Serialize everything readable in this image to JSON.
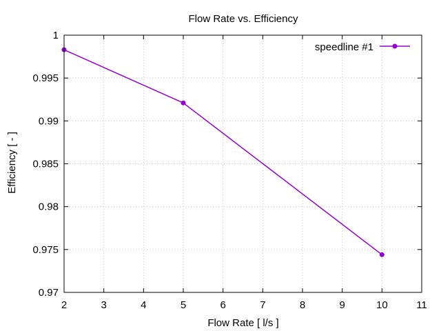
{
  "chart_data": {
    "type": "line",
    "title": "Flow Rate vs. Efficiency",
    "xlabel": "Flow Rate [ l/s ]",
    "ylabel": "Efficiency [ - ]",
    "xlim": [
      2,
      11
    ],
    "ylim": [
      0.97,
      1.0
    ],
    "xticks": [
      2,
      3,
      4,
      5,
      6,
      7,
      8,
      9,
      10,
      11
    ],
    "xtick_labels": [
      "2",
      "3",
      "4",
      "5",
      "6",
      "7",
      "8",
      "9",
      "10",
      "11"
    ],
    "yticks": [
      0.97,
      0.975,
      0.98,
      0.985,
      0.99,
      0.995,
      1.0
    ],
    "ytick_labels": [
      "0.97",
      "0.975",
      "0.98",
      "0.985",
      "0.99",
      "0.995",
      "1"
    ],
    "grid": true,
    "legend_position": "top-right",
    "series": [
      {
        "name": "speedline #1",
        "color": "#9400d3",
        "marker": "circle",
        "x": [
          2,
          5,
          10
        ],
        "y": [
          0.9983,
          0.9921,
          0.9744
        ]
      }
    ]
  }
}
